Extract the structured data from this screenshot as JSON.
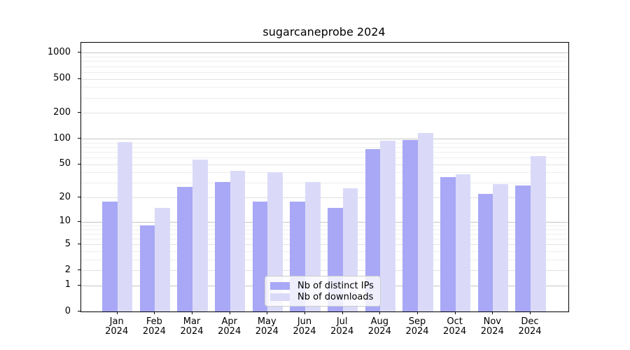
{
  "chart_data": {
    "type": "bar",
    "title": "sugarcaneprobe 2024",
    "categories": [
      "Jan",
      "Feb",
      "Mar",
      "Apr",
      "May",
      "Jun",
      "Jul",
      "Aug",
      "Sep",
      "Oct",
      "Nov",
      "Dec"
    ],
    "category_year": "2024",
    "series": [
      {
        "name": "Nb of distinct IPs",
        "color": "#a8a8f6",
        "values": [
          18,
          9,
          27,
          31,
          18,
          18,
          15,
          76,
          96,
          35,
          22,
          28
        ]
      },
      {
        "name": "Nb of downloads",
        "color": "#dadaf8",
        "values": [
          91,
          15,
          57,
          42,
          40,
          31,
          26,
          95,
          116,
          38,
          29,
          63
        ]
      }
    ],
    "y_ticks": [
      0,
      1,
      2,
      5,
      10,
      20,
      50,
      100,
      200,
      500,
      1000
    ],
    "y_decade_ticks": [
      1,
      10,
      100,
      1000
    ],
    "y_minor_ticks": [
      3,
      4,
      6,
      7,
      8,
      9,
      30,
      40,
      60,
      70,
      80,
      90,
      300,
      400,
      600,
      700,
      800,
      900
    ],
    "scale": "log1p",
    "ylim": [
      0,
      1310
    ],
    "xlabel": "",
    "ylabel": "",
    "grid": "both",
    "legend_position": "lower center",
    "colors": {
      "major_grid": "#c6c6c6",
      "mid_grid": "#e2e2e2",
      "minor_grid": "#eeeeee",
      "spine": "#000000",
      "background": "#ffffff"
    }
  }
}
